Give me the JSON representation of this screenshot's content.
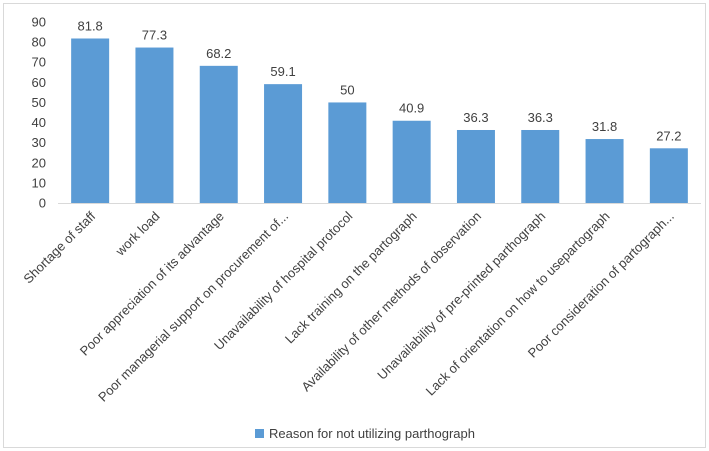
{
  "chart_data": {
    "type": "bar",
    "categories": [
      "Shortage  of staff",
      "work load",
      "Poor appreciation of its advantage",
      "Poor managerial support on procurement of...",
      "Unavailability of hospital  protocol",
      "Lack training on the partograph",
      "Availability of other methods of observation",
      "Unavailability of pre-printed parthograph",
      "Lack of orientation on how to usepartograph",
      "Poor consideration of partograph..."
    ],
    "series": [
      {
        "name": "Reason for not utilizing parthograph",
        "values": [
          81.8,
          77.3,
          68.2,
          59.1,
          50,
          40.9,
          36.3,
          36.3,
          31.8,
          27.2
        ],
        "data_labels": [
          "81.8",
          "77.3",
          "68.2",
          "59.1",
          "50",
          "40.9",
          "36.3",
          "36.3",
          "31.8",
          "27.2"
        ]
      }
    ],
    "ylim": [
      0,
      90
    ],
    "yticks": [
      "0",
      "10",
      "20",
      "30",
      "40",
      "50",
      "60",
      "70",
      "80",
      "90"
    ],
    "grid": false,
    "legend_position": "bottom",
    "bar_color": "#5b9bd5"
  }
}
